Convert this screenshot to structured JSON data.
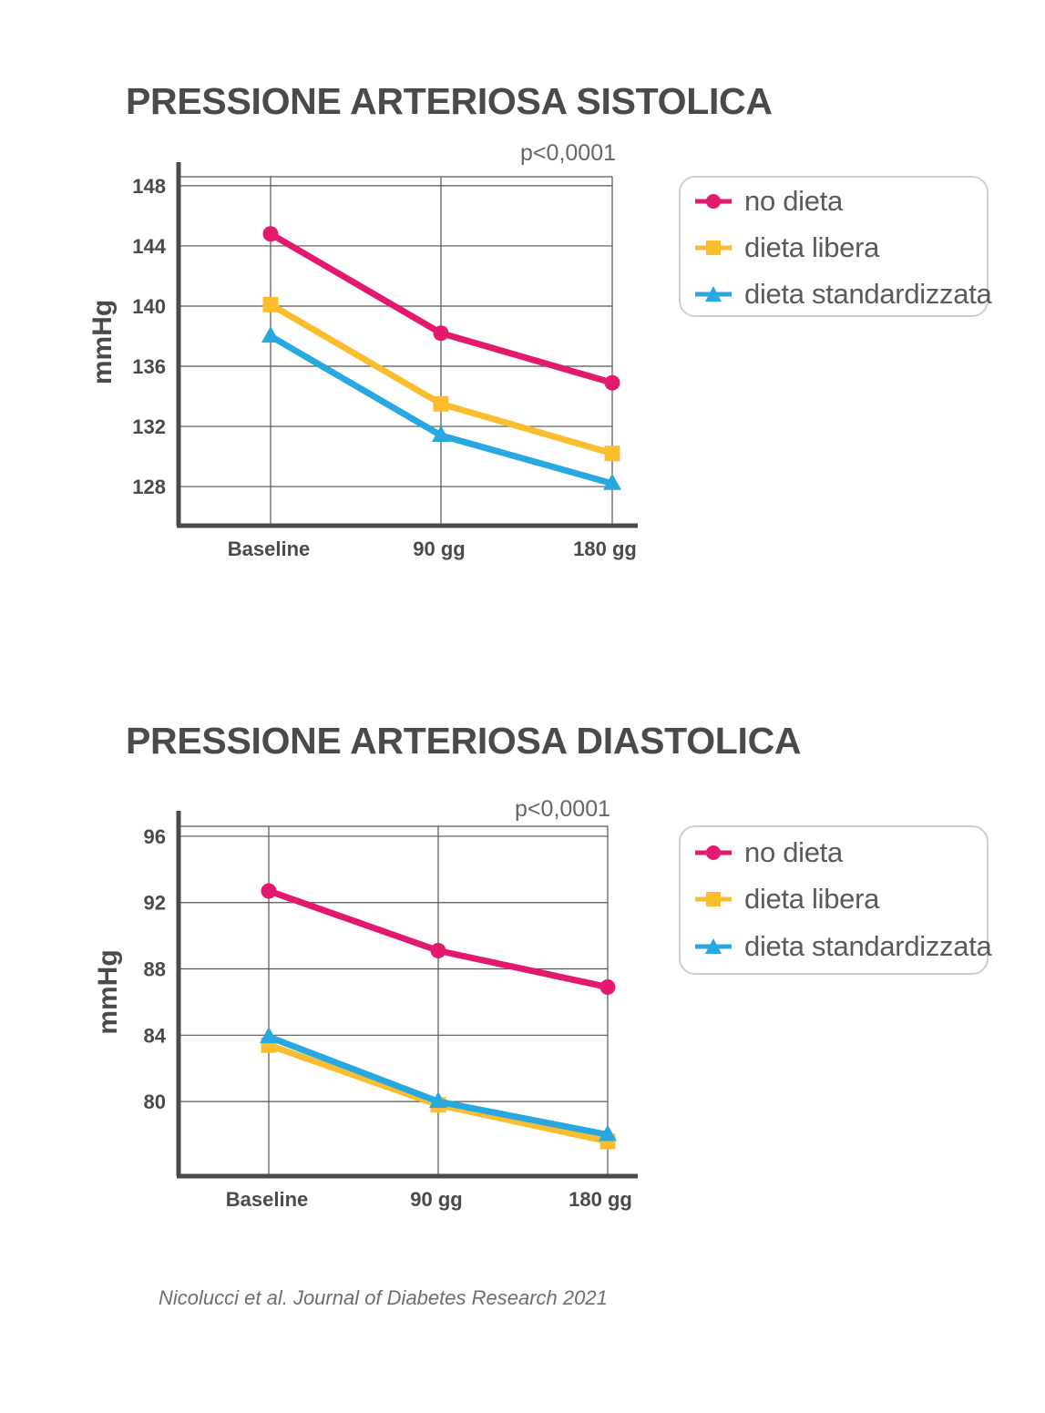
{
  "colors": {
    "no_dieta": "#e3186f",
    "dieta_libera": "#fbbd2d",
    "dieta_standardizzata": "#27a8e0",
    "axis": "#4a4a4a",
    "grid": "#555555"
  },
  "legend": {
    "items": [
      {
        "label": "no dieta",
        "marker": "circle",
        "color": "#e3186f"
      },
      {
        "label": "dieta libera",
        "marker": "square",
        "color": "#fbbd2d"
      },
      {
        "label": "dieta standardizzata",
        "marker": "triangle",
        "color": "#27a8e0"
      }
    ]
  },
  "source": "Nicolucci et al. Journal of Diabetes Research 2021",
  "chart_data": [
    {
      "type": "line",
      "title": "PRESSIONE ARTERIOSA SISTOLICA",
      "annotation": "p<0,0001",
      "ylabel": "mmHg",
      "xlabel": "",
      "categories": [
        "Baseline",
        "90 gg",
        "180 gg"
      ],
      "yticks": [
        128,
        132,
        136,
        140,
        144,
        148
      ],
      "ylim": [
        125.4,
        148.6
      ],
      "grid": true,
      "legend_position": "right",
      "series": [
        {
          "name": "no dieta",
          "marker": "circle",
          "color": "#e3186f",
          "values": [
            144.8,
            138.2,
            134.9
          ]
        },
        {
          "name": "dieta libera",
          "marker": "square",
          "color": "#fbbd2d",
          "values": [
            140.1,
            133.5,
            130.2
          ]
        },
        {
          "name": "dieta standardizzata",
          "marker": "triangle",
          "color": "#27a8e0",
          "values": [
            138.0,
            131.4,
            128.2
          ]
        }
      ]
    },
    {
      "type": "line",
      "title": "PRESSIONE ARTERIOSA DIASTOLICA",
      "annotation": "p<0,0001",
      "ylabel": "mmHg",
      "xlabel": "",
      "categories": [
        "Baseline",
        "90 gg",
        "180 gg"
      ],
      "yticks": [
        80,
        84,
        88,
        92,
        96
      ],
      "ylim": [
        75.5,
        96.6
      ],
      "grid": true,
      "legend_position": "right",
      "series": [
        {
          "name": "no dieta",
          "marker": "circle",
          "color": "#e3186f",
          "values": [
            92.7,
            89.1,
            86.9
          ]
        },
        {
          "name": "dieta libera",
          "marker": "square",
          "color": "#fbbd2d",
          "values": [
            83.4,
            79.8,
            77.6
          ]
        },
        {
          "name": "dieta standardizzata",
          "marker": "triangle",
          "color": "#27a8e0",
          "values": [
            83.9,
            80.0,
            78.0
          ]
        }
      ]
    }
  ]
}
